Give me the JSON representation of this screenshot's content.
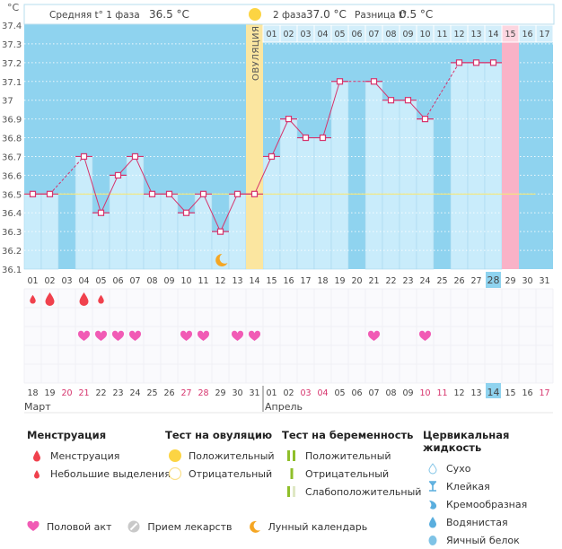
{
  "header": {
    "unit_label": "°C",
    "phase1_label": "Средняя t° 1 фаза",
    "phase1_value": "36.5 °C",
    "phase2_label": "2 фаза",
    "phase2_value": "37.0 °C",
    "diff_label": "Разница t°",
    "diff_value": "0.5 °C",
    "ovulation_label": "ОВУЛЯЦИЯ"
  },
  "colors": {
    "bg_high": "#8fd3ef",
    "bar_fill": "#c9ecfb",
    "grid_line": "#ffffff",
    "line": "#d6336c",
    "coverline": "#f3e77a",
    "ovulation_band": "#fbe6a0",
    "period_expected": "#f9b2c7",
    "menstruation": "#f0414d",
    "heart": "#f15bb5",
    "weekend": "#d6336c",
    "today_highlight": "#8fd3ef"
  },
  "chart_data": {
    "type": "line",
    "title": "",
    "ylabel": "°C",
    "xlabel": "",
    "ylim": [
      36.1,
      37.4
    ],
    "yticks": [
      "37.4",
      "37.3",
      "37.2",
      "37.1",
      "37",
      "36.9",
      "36.8",
      "36.7",
      "36.6",
      "36.5",
      "36.4",
      "36.3",
      "36.2",
      "36.1"
    ],
    "coverline": 36.5,
    "cycle_days": [
      "01",
      "02",
      "03",
      "04",
      "05",
      "06",
      "07",
      "08",
      "09",
      "10",
      "11",
      "12",
      "13",
      "14",
      "15",
      "16",
      "17",
      "18",
      "19",
      "20",
      "21",
      "22",
      "23",
      "24",
      "25",
      "26",
      "27",
      "28",
      "29",
      "30",
      "31"
    ],
    "temperatures": [
      36.5,
      36.5,
      null,
      36.7,
      36.4,
      36.6,
      36.7,
      36.5,
      36.5,
      36.4,
      36.5,
      36.3,
      36.5,
      36.5,
      36.7,
      36.9,
      36.8,
      36.8,
      37.1,
      null,
      37.1,
      37.0,
      37.0,
      36.9,
      null,
      37.2,
      37.2,
      37.2,
      null,
      null,
      null
    ],
    "ovulation_day": 14,
    "phase2_days": [
      "01",
      "02",
      "03",
      "04",
      "05",
      "06",
      "07",
      "08",
      "09",
      "10",
      "11",
      "12",
      "13",
      "14",
      "15",
      "16",
      "17"
    ],
    "expected_period_day": 29,
    "current_day": 28,
    "moon_day": 12,
    "menstruation": [
      {
        "day": 1,
        "type": "light"
      },
      {
        "day": 2,
        "type": "heavy"
      },
      {
        "day": 4,
        "type": "heavy"
      },
      {
        "day": 5,
        "type": "light"
      }
    ],
    "intercourse_days": [
      4,
      5,
      6,
      7,
      10,
      11,
      13,
      14,
      21,
      24
    ],
    "dates": [
      "18",
      "19",
      "20",
      "21",
      "22",
      "23",
      "24",
      "25",
      "26",
      "27",
      "28",
      "29",
      "30",
      "31",
      "01",
      "02",
      "03",
      "04",
      "05",
      "06",
      "07",
      "08",
      "09",
      "10",
      "11",
      "12",
      "13",
      "14",
      "15",
      "16",
      "17"
    ],
    "weekend_date_indexes": [
      2,
      3,
      9,
      10,
      16,
      17,
      23,
      24,
      30
    ],
    "today_date_index": 27,
    "months": [
      {
        "label": "Март",
        "start_index": 0
      },
      {
        "label": "Апрель",
        "start_index": 14
      }
    ]
  },
  "legend": {
    "menstruation": {
      "title": "Менструация",
      "items": [
        "Менструация",
        "Небольшие выделения"
      ]
    },
    "ovulation_test": {
      "title": "Тест на овуляцию",
      "items": [
        "Положительный",
        "Отрицательный"
      ]
    },
    "pregnancy_test": {
      "title": "Тест на беременность",
      "items": [
        "Положительный",
        "Отрицательный",
        "Слабоположительный"
      ]
    },
    "cervical_fluid": {
      "title": "Цервикальная жидкость",
      "items": [
        "Сухо",
        "Клейкая",
        "Кремообразная",
        "Водянистая",
        "Яичный белок"
      ]
    },
    "other": {
      "items": [
        "Половой акт",
        "Прием лекарств",
        "Лунный календарь"
      ]
    }
  }
}
